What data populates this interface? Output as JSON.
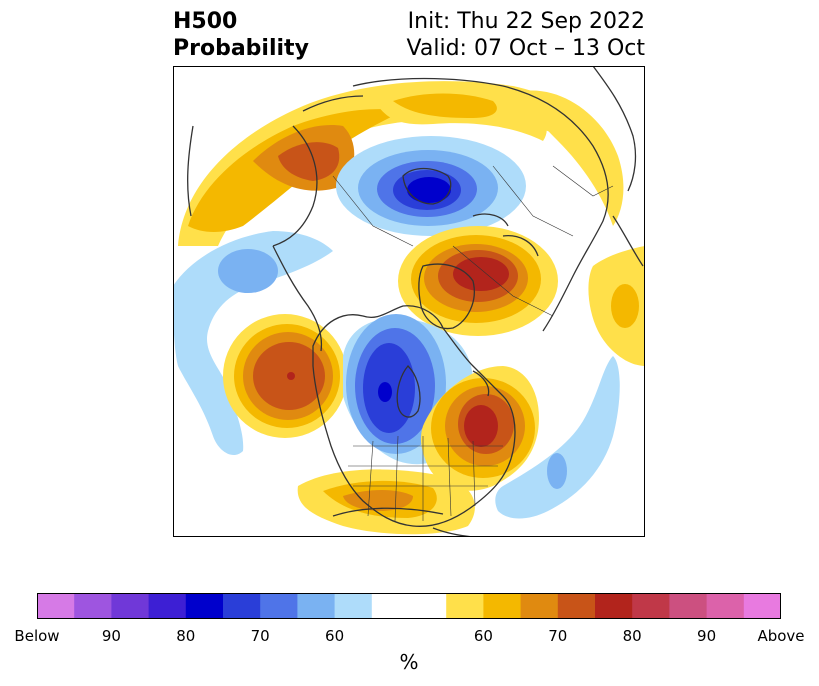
{
  "header": {
    "title_line1": "H500",
    "title_line2": "Probability",
    "init": "Init: Thu 22 Sep 2022",
    "valid": "Valid: 07 Oct – 13 Oct"
  },
  "colorbar": {
    "unit": "%",
    "colors": [
      "#d67ae6",
      "#9e55e0",
      "#7038d8",
      "#3d1fd4",
      "#0000cc",
      "#2a3ed8",
      "#4f74e8",
      "#7ab2f2",
      "#aedcfa",
      "#ffffff",
      "#ffffff",
      "#ffe04a",
      "#f4b800",
      "#e08a10",
      "#c85418",
      "#b2241c",
      "#c03848",
      "#cc5080",
      "#dc62aa",
      "#e87ae0"
    ],
    "ticks": [
      "Below",
      "90",
      "80",
      "70",
      "60",
      "60",
      "70",
      "80",
      "90",
      "Above"
    ],
    "tick_positions": [
      0,
      2,
      4,
      6,
      8,
      12,
      14,
      16,
      18,
      20
    ]
  },
  "map": {
    "projection": "north-polar-stereographic",
    "colors": {
      "coast": "#333333",
      "b60": "#aedcfa",
      "b65": "#7ab2f2",
      "b70": "#4f74e8",
      "b75": "#2a3ed8",
      "b80": "#0000cc",
      "a55": "#ffe04a",
      "a60": "#f4b800",
      "a65": "#e08a10",
      "a70": "#c85418",
      "a75": "#b2241c"
    }
  }
}
